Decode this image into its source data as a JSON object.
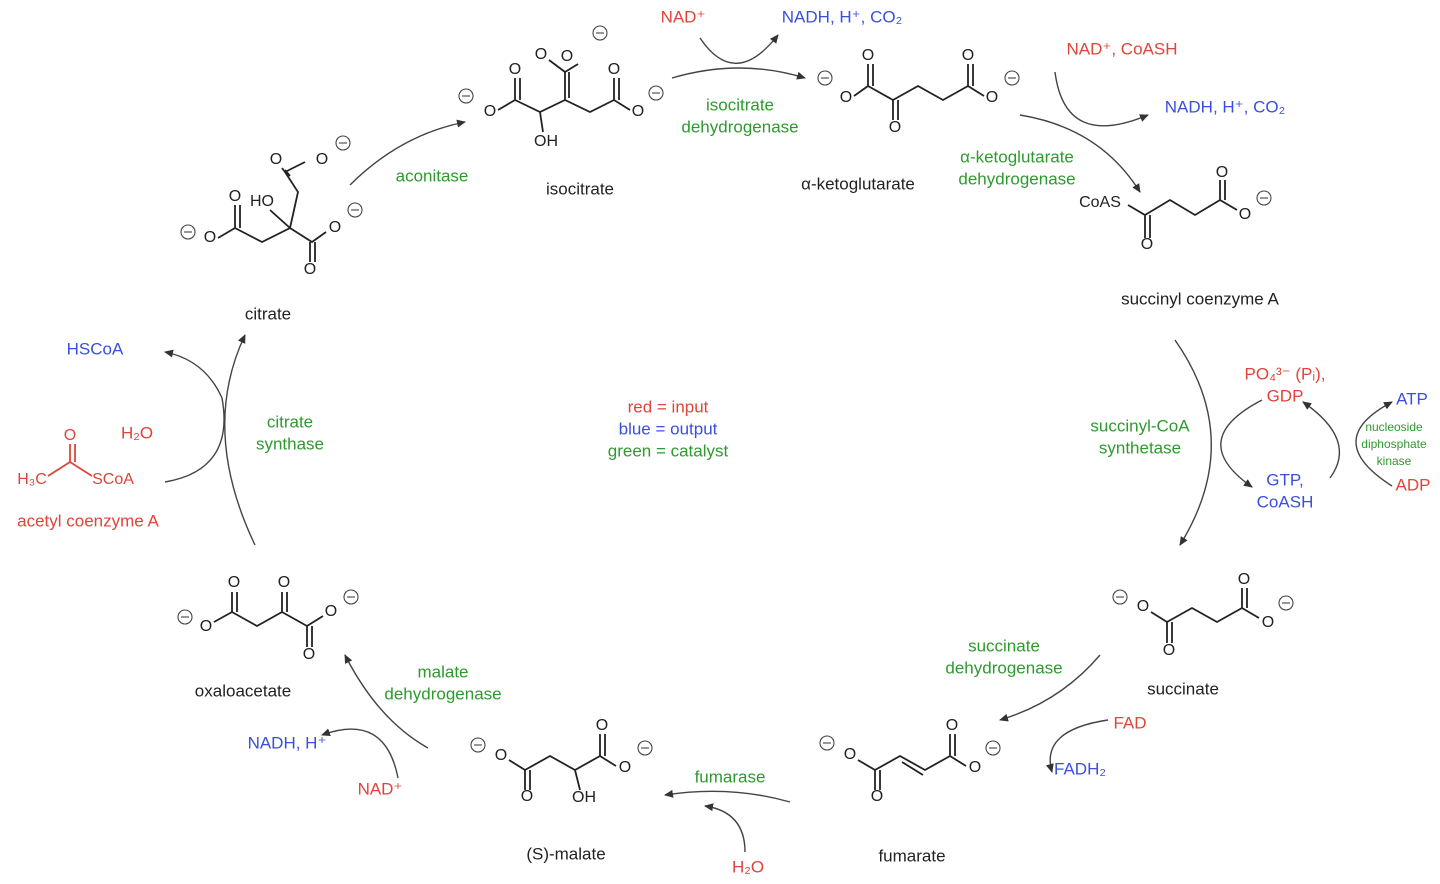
{
  "legend": [
    "red = input",
    "blue = output",
    "green = catalyst"
  ],
  "metabolites": [
    "isocitrate",
    "α-ketoglutarate",
    "succinyl coenzyme A",
    "succinate",
    "fumarate",
    "(S)-malate",
    "oxaloacetate",
    "citrate"
  ],
  "enzymes": [
    [
      "aconitase"
    ],
    [
      "isocitrate",
      "dehydrogenase"
    ],
    [
      "α-ketoglutarate",
      "dehydrogenase"
    ],
    [
      "succinyl-CoA",
      "synthetase"
    ],
    [
      "nucleoside",
      "diphosphate",
      "kinase"
    ],
    [
      "succinate",
      "dehydrogenase"
    ],
    [
      "fumarase"
    ],
    [
      "malate",
      "dehydrogenase"
    ],
    [
      "citrate",
      "synthase"
    ]
  ],
  "inputs": [
    [
      "NAD⁺"
    ],
    [
      "NAD⁺, CoASH"
    ],
    [
      "PO₄³⁻ (Pᵢ),",
      "GDP"
    ],
    [
      "ADP"
    ],
    [
      "FAD"
    ],
    [
      "H₂O"
    ],
    [
      "NAD⁺"
    ],
    [
      "H₂O"
    ],
    [
      "acetyl coenzyme A"
    ]
  ],
  "outputs": [
    [
      "NADH, H⁺, CO₂"
    ],
    [
      "NADH, H⁺, CO₂"
    ],
    [
      "ATP"
    ],
    [
      "GTP,",
      "CoASH"
    ],
    [
      "FADH₂"
    ],
    [
      "NADH, H⁺"
    ],
    [
      "HSCoA"
    ]
  ],
  "structures": {
    "citrate": [
      "O",
      "HO",
      "O",
      "O",
      "O",
      "O",
      "O"
    ],
    "isocitrate": [
      "O",
      "O",
      "O",
      "O",
      "O",
      "O",
      "OH"
    ],
    "ketoglutarate": [
      "O",
      "O",
      "O",
      "O",
      "O"
    ],
    "succinyl": [
      "CoAS",
      "O",
      "O",
      "O"
    ],
    "succinate": [
      "O",
      "O",
      "O",
      "O"
    ],
    "fumarate": [
      "O",
      "O",
      "O",
      "O"
    ],
    "malate": [
      "O",
      "O",
      "O",
      "O",
      "OH"
    ],
    "oxaloacetate": [
      "O",
      "O",
      "O",
      "O",
      "O"
    ],
    "acetyl": [
      "O",
      "H₃C",
      "SCoA"
    ]
  }
}
